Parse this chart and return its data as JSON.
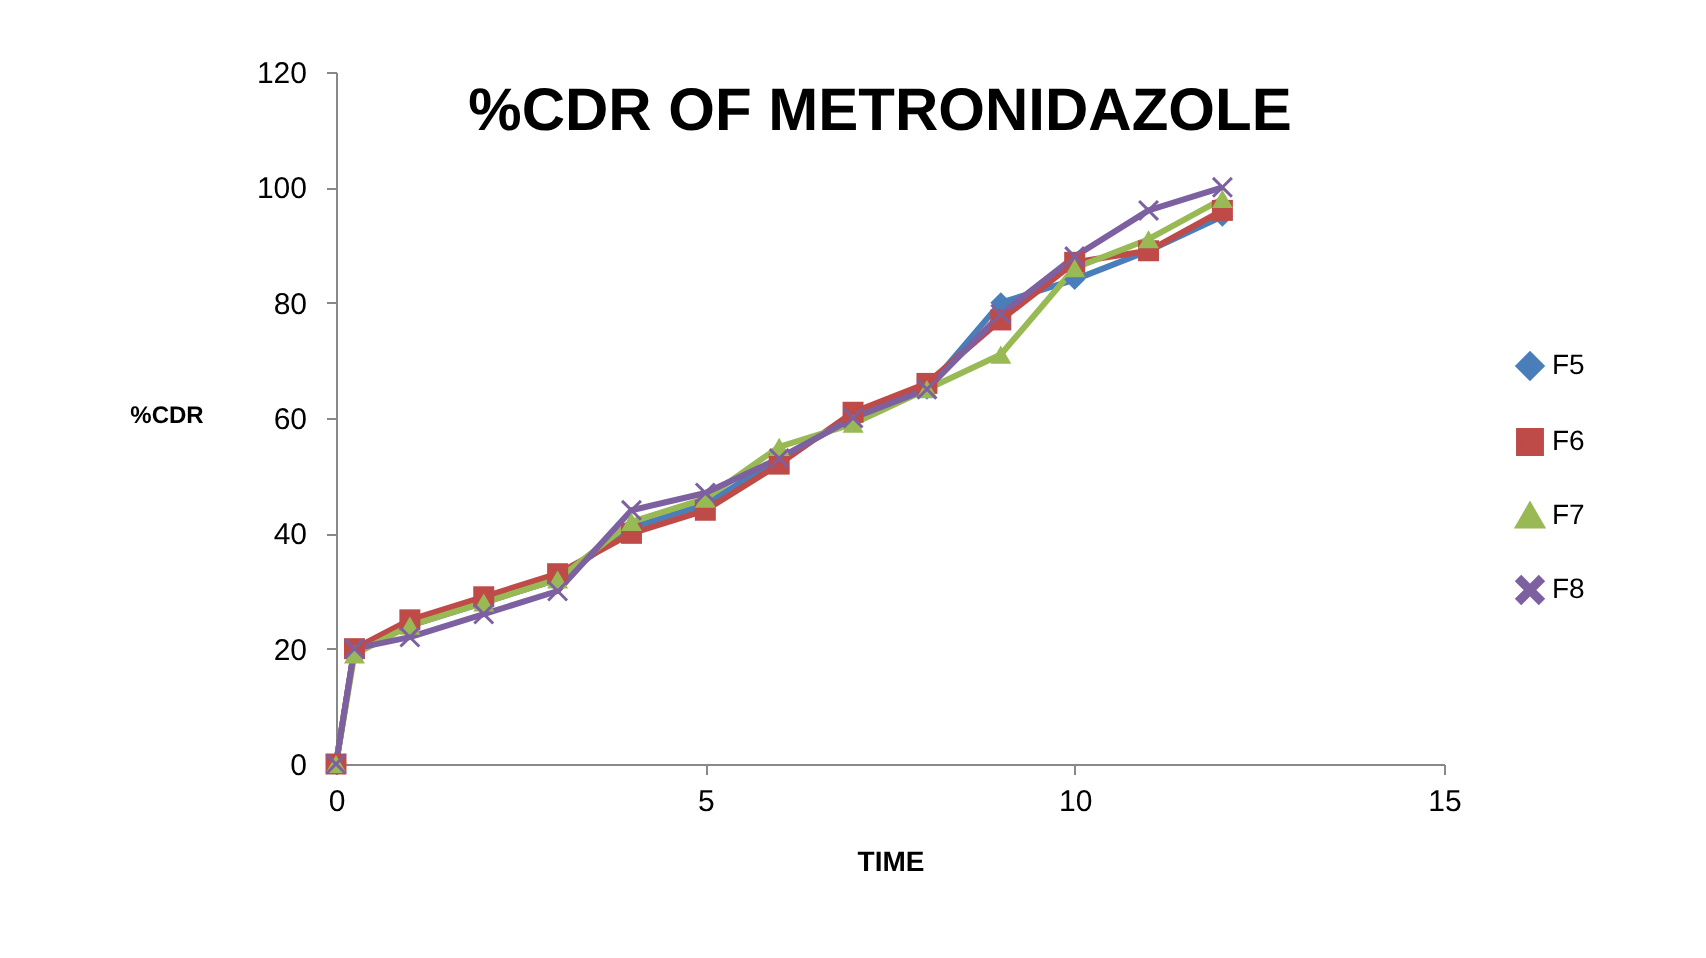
{
  "chart_data": {
    "type": "line",
    "title": "%CDR OF METRONIDAZOLE",
    "xlabel": "TIME",
    "ylabel": "%CDR",
    "x": [
      0,
      0.25,
      1,
      2,
      3,
      4,
      5,
      6,
      7,
      8,
      9,
      10,
      11,
      12
    ],
    "series": [
      {
        "name": "F5",
        "color": "#4a7ebb",
        "marker": "diamond",
        "values": [
          0,
          20,
          24,
          28,
          32,
          41,
          45,
          53,
          60,
          65,
          80,
          84,
          89,
          95
        ]
      },
      {
        "name": "F6",
        "color": "#be4b48",
        "marker": "square",
        "values": [
          0,
          20,
          25,
          29,
          33,
          40,
          44,
          52,
          61,
          66,
          77,
          87,
          89,
          96
        ]
      },
      {
        "name": "F7",
        "color": "#98b954",
        "marker": "triangle",
        "values": [
          0,
          19,
          24,
          28,
          32,
          42,
          46,
          55,
          59,
          65,
          71,
          86,
          91,
          98
        ]
      },
      {
        "name": "F8",
        "color": "#7d60a0",
        "marker": "cross",
        "values": [
          0,
          20,
          22,
          26,
          30,
          44,
          47,
          53,
          60,
          65,
          78,
          88,
          96,
          100
        ]
      }
    ],
    "xlim": [
      0,
      15
    ],
    "xticks": [
      0,
      5,
      10,
      15
    ],
    "ylim": [
      0,
      120
    ],
    "yticks": [
      0,
      20,
      40,
      60,
      80,
      100,
      120
    ],
    "grid": false,
    "legend": "right",
    "line_style": "solid"
  }
}
